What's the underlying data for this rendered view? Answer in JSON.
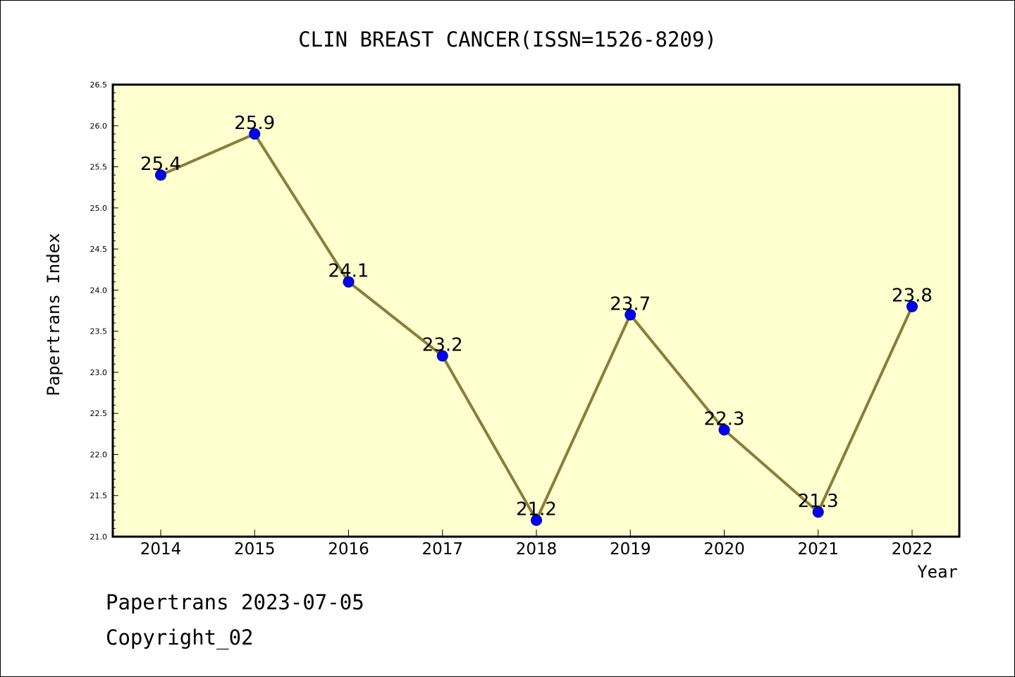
{
  "chart_data": {
    "type": "line",
    "title": "CLIN BREAST CANCER(ISSN=1526-8209)",
    "xlabel": "Year",
    "ylabel": "Papertrans Index",
    "categories": [
      "2014",
      "2015",
      "2016",
      "2017",
      "2018",
      "2019",
      "2020",
      "2021",
      "2022"
    ],
    "values": [
      25.4,
      25.9,
      24.1,
      23.2,
      21.2,
      23.7,
      22.3,
      21.3,
      23.8
    ],
    "data_labels": [
      "25.4",
      "25.9",
      "24.1",
      "23.2",
      "21.2",
      "23.7",
      "22.3",
      "21.3",
      "23.8"
    ],
    "ylim": [
      21.0,
      26.5
    ],
    "yticks": [
      "21.0",
      "21.5",
      "22.0",
      "22.5",
      "23.0",
      "23.5",
      "24.0",
      "24.5",
      "25.0",
      "25.5",
      "26.0",
      "26.5"
    ],
    "grid": false,
    "legend": "none",
    "colors": {
      "plot_background": "#ffffd0",
      "line": "#8b7d3a",
      "marker": "#0000ff",
      "marker_edge": "#000080"
    }
  },
  "footer": {
    "line1": "Papertrans 2023-07-05",
    "line2": "Copyright_02"
  }
}
